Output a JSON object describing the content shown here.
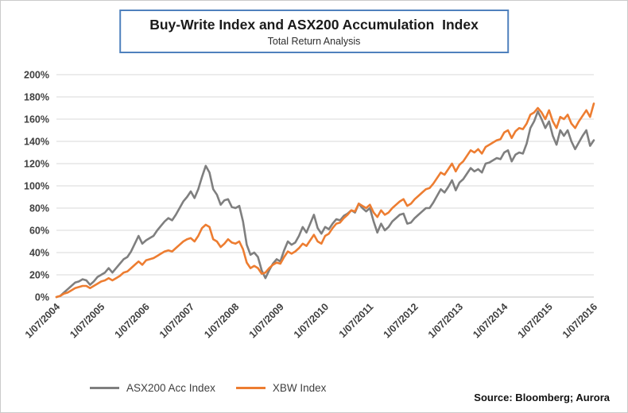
{
  "header": {
    "title": "Buy-Write Index and ASX200 Accumulation  Index",
    "subtitle": "Total Return Analysis"
  },
  "footer": {
    "source": "Source: Bloomberg; Aurora"
  },
  "colors": {
    "title_border": "#4f81bd",
    "grid": "#d9d9d9",
    "axis": "#bfbfbf",
    "axis_text": "#3f3f3f",
    "series_gray": "#7f7f7f",
    "series_orange": "#ed7d31"
  },
  "chart_data": {
    "type": "line",
    "title": "Buy-Write Index and ASX200 Accumulation  Index",
    "subtitle": "Total Return Analysis",
    "grid": true,
    "legend_position": "bottom",
    "ylim": [
      0,
      200
    ],
    "y_tick_step": 20,
    "y_tick_labels": [
      "0%",
      "20%",
      "40%",
      "60%",
      "80%",
      "100%",
      "120%",
      "140%",
      "160%",
      "180%",
      "200%"
    ],
    "x_tick_labels": [
      "1/07/2004",
      "1/07/2005",
      "1/07/2006",
      "1/07/2007",
      "1/07/2008",
      "1/07/2009",
      "1/07/2010",
      "1/07/2011",
      "1/07/2012",
      "1/07/2013",
      "1/07/2014",
      "1/07/2015",
      "1/07/2016"
    ],
    "x_start": "1/07/2004",
    "x_end": "1/07/2016",
    "x_frequency": "monthly",
    "y_unit": "percent_total_return",
    "series": [
      {
        "name": "ASX200 Acc Index",
        "color": "#7f7f7f",
        "values": [
          0,
          1,
          4,
          7,
          10,
          13,
          14,
          16,
          15,
          11,
          14,
          18,
          20,
          22,
          26,
          22,
          26,
          30,
          34,
          36,
          41,
          48,
          55,
          48,
          51,
          53,
          55,
          60,
          64,
          68,
          71,
          69,
          74,
          80,
          86,
          90,
          95,
          89,
          97,
          108,
          118,
          112,
          97,
          92,
          83,
          87,
          88,
          81,
          80,
          82,
          68,
          47,
          38,
          40,
          36,
          24,
          17,
          24,
          30,
          34,
          32,
          42,
          50,
          47,
          49,
          55,
          63,
          58,
          66,
          74,
          62,
          57,
          63,
          61,
          66,
          70,
          69,
          73,
          75,
          78,
          76,
          84,
          80,
          77,
          80,
          68,
          58,
          66,
          60,
          63,
          68,
          71,
          74,
          75,
          66,
          67,
          71,
          74,
          77,
          80,
          80,
          85,
          91,
          97,
          94,
          99,
          105,
          96,
          103,
          106,
          111,
          116,
          113,
          115,
          112,
          120,
          121,
          123,
          125,
          124,
          130,
          132,
          122,
          128,
          130,
          129,
          138,
          152,
          158,
          167,
          160,
          152,
          158,
          145,
          137,
          150,
          145,
          150,
          140,
          133,
          139,
          145,
          150,
          136,
          141
        ]
      },
      {
        "name": "XBW Index",
        "color": "#ed7d31",
        "values": [
          0,
          1,
          3,
          4,
          6,
          8,
          9,
          10,
          10,
          8,
          10,
          12,
          14,
          15,
          17,
          15,
          17,
          19,
          22,
          23,
          26,
          29,
          32,
          29,
          33,
          34,
          35,
          37,
          39,
          41,
          42,
          41,
          44,
          47,
          50,
          52,
          53,
          50,
          55,
          62,
          65,
          63,
          52,
          50,
          45,
          48,
          52,
          49,
          48,
          50,
          43,
          31,
          26,
          28,
          26,
          21,
          22,
          26,
          29,
          31,
          30,
          36,
          41,
          39,
          41,
          44,
          48,
          46,
          51,
          56,
          50,
          48,
          55,
          57,
          62,
          66,
          67,
          71,
          74,
          78,
          77,
          84,
          82,
          80,
          83,
          76,
          72,
          78,
          74,
          76,
          80,
          83,
          86,
          88,
          82,
          84,
          88,
          91,
          94,
          97,
          98,
          102,
          107,
          112,
          110,
          115,
          120,
          113,
          119,
          122,
          127,
          132,
          130,
          133,
          129,
          135,
          137,
          139,
          141,
          142,
          148,
          150,
          143,
          149,
          152,
          151,
          156,
          164,
          166,
          170,
          166,
          160,
          168,
          158,
          152,
          162,
          160,
          164,
          156,
          152,
          158,
          163,
          168,
          162,
          174
        ]
      }
    ]
  }
}
